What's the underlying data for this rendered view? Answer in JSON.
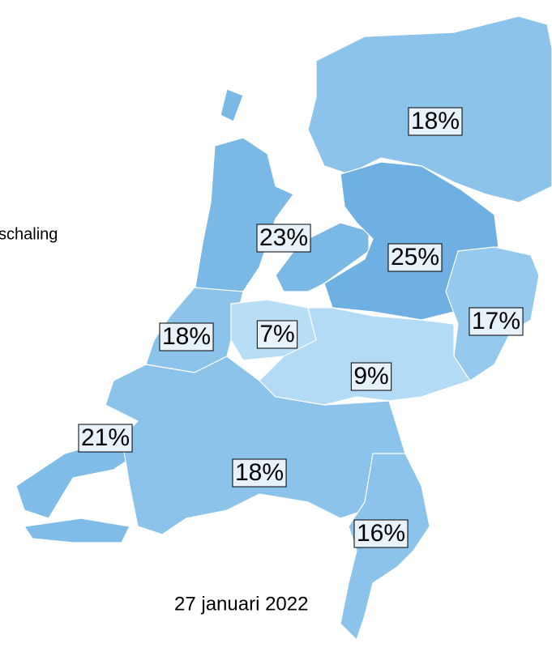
{
  "legend_text": "schaling",
  "regions": [
    {
      "label": "18%"
    },
    {
      "label": "23%"
    },
    {
      "label": "25%"
    },
    {
      "label": "17%"
    },
    {
      "label": "18%"
    },
    {
      "label": "7%"
    },
    {
      "label": "9%"
    },
    {
      "label": "21%"
    },
    {
      "label": "18%"
    },
    {
      "label": "16%"
    }
  ],
  "date": "27 januari 2022"
}
